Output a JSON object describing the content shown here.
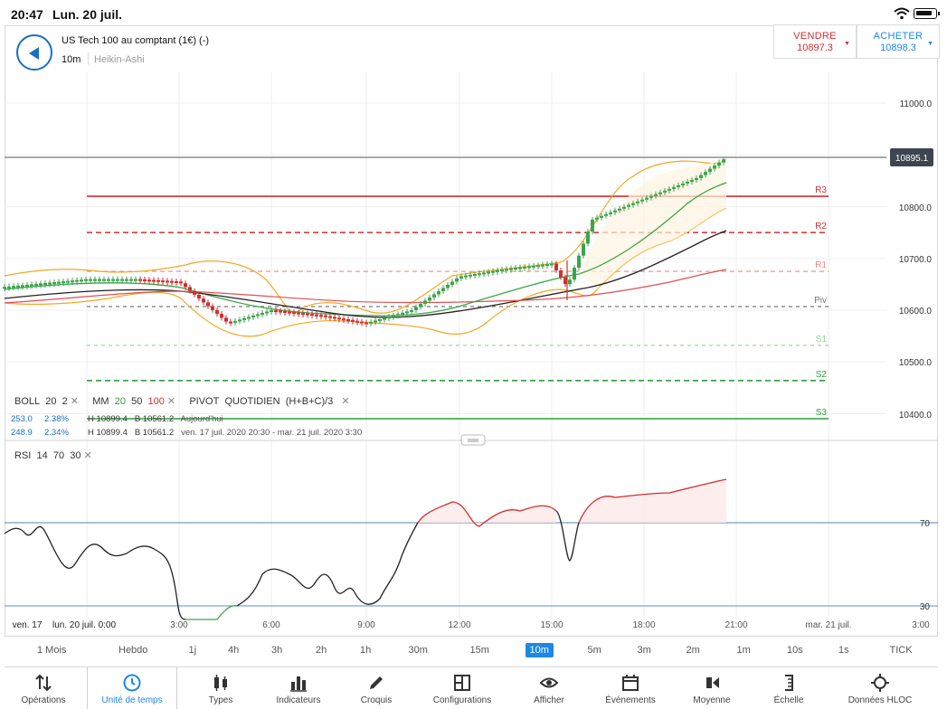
{
  "status": {
    "time": "20:47",
    "date": "Lun. 20 juil."
  },
  "instrument": {
    "title": "US Tech 100 au comptant (1€) (-)",
    "timeframe": "10m",
    "chart_type": "Heikin-Ashi"
  },
  "trade": {
    "sell_label": "VENDRE",
    "sell_price": "10897.3",
    "buy_label": "ACHETER",
    "buy_price": "10898.3",
    "sell_color": "#d32f2f",
    "buy_color": "#1e88e5"
  },
  "price_axis": {
    "ticks": [
      "11000.0",
      "10800.0",
      "10700.0",
      "10600.0",
      "10500.0",
      "10400.0"
    ],
    "current": "10895.1"
  },
  "pivot_labels": [
    "R3",
    "R2",
    "R1",
    "Piv",
    "S1",
    "S2",
    "S3"
  ],
  "legend": {
    "boll_label": "BOLL",
    "boll_p1": "20",
    "boll_p2": "2",
    "mm_label": "MM",
    "mm_p1": "20",
    "mm_p2": "50",
    "mm_p3": "100",
    "pivot_label": "PIVOT",
    "pivot_period": "QUOTIDIEN",
    "pivot_formula": "(H+B+C)/3",
    "row1_a": "253.0",
    "row1_b": "2.38%",
    "row1_h": "H 10899.4",
    "row1_l": "B 10561.2",
    "row1_p": "Aujourd'hui",
    "row2_a": "248.9",
    "row2_b": "2.34%",
    "row2_h": "H 10899.4",
    "row2_l": "B 10561.2",
    "row2_p": "ven. 17 juil. 2020 20:30 - mar. 21 juil. 2020 3:30"
  },
  "rsi": {
    "label": "RSI",
    "p1": "14",
    "p2": "70",
    "p3": "30",
    "levels": [
      "70",
      "30"
    ]
  },
  "time_axis": [
    "ven. 17",
    "lun. 20 juil. 0:00",
    "3:00",
    "6:00",
    "9:00",
    "12:00",
    "15:00",
    "18:00",
    "21:00",
    "mar. 21 juil.",
    "3:00"
  ],
  "timeframes": [
    "1 Mois",
    "Hebdo",
    "1j",
    "4h",
    "3h",
    "2h",
    "1h",
    "30m",
    "15m",
    "10m",
    "5m",
    "3m",
    "2m",
    "1m",
    "10s",
    "1s",
    "TICK"
  ],
  "active_timeframe": "10m",
  "toolbar": [
    {
      "label": "Opérations",
      "icon": "arrows-updown-icon"
    },
    {
      "label": "Unité de temps",
      "icon": "clock-icon"
    },
    {
      "label": "Types",
      "icon": "candles-icon"
    },
    {
      "label": "Indicateurs",
      "icon": "bars-icon"
    },
    {
      "label": "Croquis",
      "icon": "pencil-icon"
    },
    {
      "label": "Configurations",
      "icon": "layout-icon"
    },
    {
      "label": "Afficher",
      "icon": "eye-icon"
    },
    {
      "label": "Événements",
      "icon": "calendar-icon"
    },
    {
      "label": "Moyenne",
      "icon": "average-icon"
    },
    {
      "label": "Échelle",
      "icon": "scale-icon"
    },
    {
      "label": "Données HLOC",
      "icon": "crosshair-icon"
    }
  ],
  "active_tool": "Unité de temps",
  "colors": {
    "up": "#3aa64a",
    "down": "#d32f2f",
    "boll": "#f5a623",
    "mm20": "#3aa64a",
    "mm50": "#222222",
    "mm100": "#e05050",
    "rsi": "#222222",
    "accent": "#1e88e5"
  },
  "chart_data": {
    "type": "line",
    "title": "US Tech 100 au comptant (1€) (-)",
    "ylim": [
      10380,
      11040
    ],
    "pivots": [
      {
        "name": "R3",
        "value": 10820
      },
      {
        "name": "R2",
        "value": 10750
      },
      {
        "name": "R1",
        "value": 10675
      },
      {
        "name": "Piv",
        "value": 10607
      },
      {
        "name": "S1",
        "value": 10532
      },
      {
        "name": "S2",
        "value": 10464
      },
      {
        "name": "S3",
        "value": 10390
      }
    ],
    "series": [
      {
        "name": "Heikin-Ashi",
        "x": [
          "ven. 17 juil.",
          "0:00",
          "1:30",
          "3:00",
          "4:30",
          "6:00",
          "7:30",
          "9:00",
          "10:30",
          "12:00",
          "13:30",
          "15:00",
          "15:50",
          "16:40",
          "18:00",
          "19:30",
          "20:40"
        ],
        "values": [
          10645,
          10660,
          10660,
          10655,
          10575,
          10600,
          10590,
          10575,
          10600,
          10665,
          10680,
          10690,
          10645,
          10775,
          10815,
          10855,
          10895
        ]
      },
      {
        "name": "MM 20",
        "x": [
          "ven. 17 juil.",
          "3:00",
          "9:00",
          "15:00",
          "18:00",
          "20:40"
        ],
        "values": [
          10650,
          10640,
          10590,
          10680,
          10790,
          10845
        ]
      },
      {
        "name": "MM 50",
        "x": [
          "ven. 17 juil.",
          "3:00",
          "9:00",
          "15:00",
          "18:00",
          "20:40"
        ],
        "values": [
          10630,
          10640,
          10590,
          10620,
          10680,
          10755
        ]
      },
      {
        "name": "MM 100",
        "x": [
          "ven. 17 juil.",
          "3:00",
          "9:00",
          "15:00",
          "18:00",
          "20:40"
        ],
        "values": [
          10615,
          10630,
          10610,
          10625,
          10640,
          10675
        ]
      }
    ],
    "rsi": {
      "x": [
        "ven. 17 juil.",
        "3:00",
        "4:30",
        "9:00",
        "11:30",
        "15:30",
        "15:50",
        "16:30",
        "20:40"
      ],
      "values": [
        68,
        28,
        30,
        30,
        70,
        72,
        50,
        77,
        82
      ]
    }
  }
}
